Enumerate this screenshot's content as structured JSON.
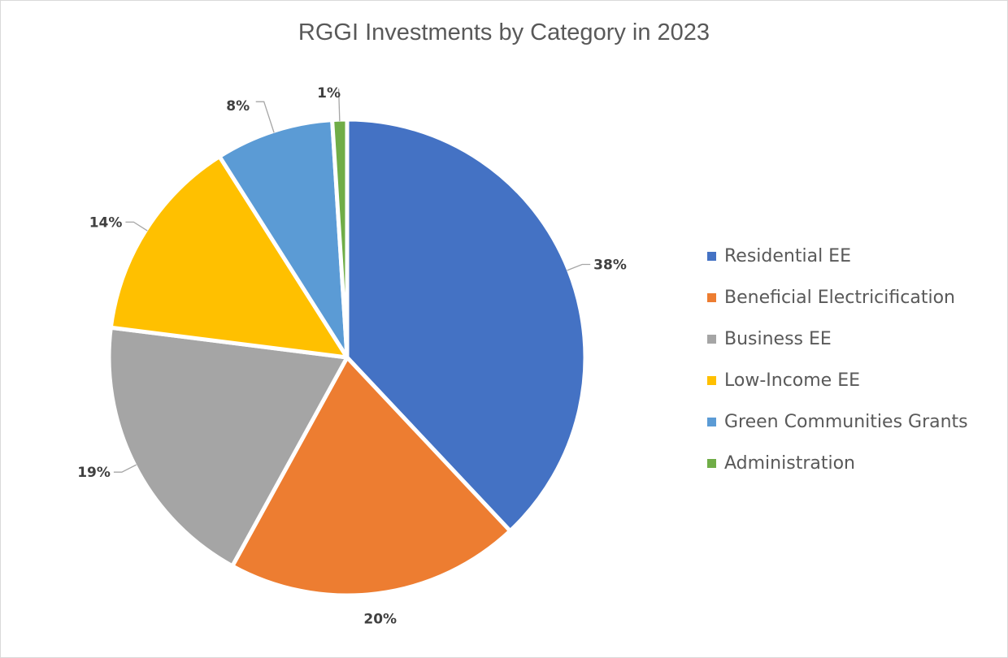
{
  "chart_data": {
    "type": "pie",
    "title": "RGGI Investments by Category in 2023",
    "categories": [
      "Residential EE",
      "Beneficial Electricification",
      "Business EE",
      "Low-Income EE",
      "Green Communities Grants",
      "Administration"
    ],
    "values": [
      38,
      20,
      19,
      14,
      8,
      1
    ],
    "labels": [
      "38%",
      "20%",
      "19%",
      "14%",
      "8%",
      "1%"
    ],
    "colors": [
      "#4472C4",
      "#ED7D31",
      "#A5A5A5",
      "#FFC000",
      "#5B9BD5",
      "#70AD47"
    ],
    "legend_position": "right"
  }
}
